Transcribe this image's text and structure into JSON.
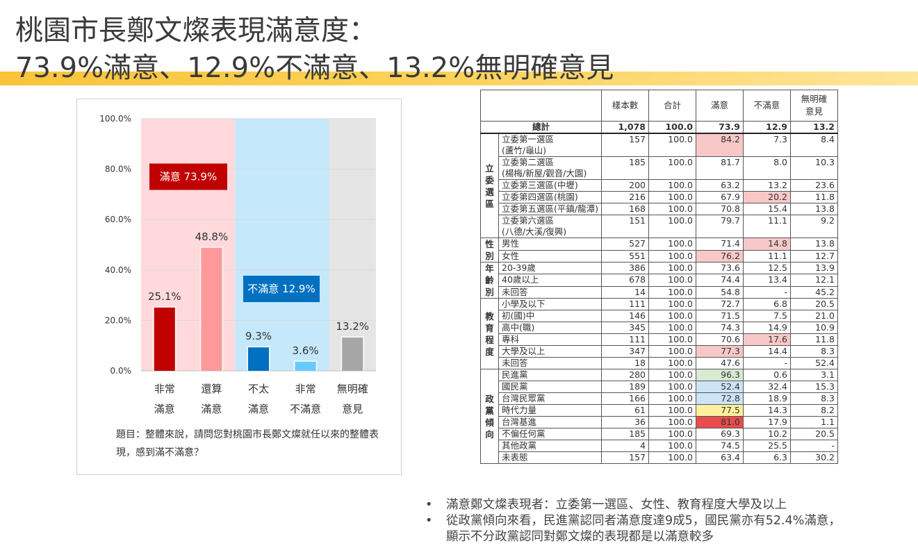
{
  "title": {
    "line1": "桃園市長鄭文燦表現滿意度：",
    "line2": "73.9%滿意、12.9%不滿意、13.2%無明確意見"
  },
  "chart_data": {
    "type": "bar",
    "categories": [
      [
        "非常",
        "滿意"
      ],
      [
        "還算",
        "滿意"
      ],
      [
        "不太",
        "滿意"
      ],
      [
        "非常",
        "不滿意"
      ],
      [
        "無明確",
        "意見"
      ]
    ],
    "values": [
      25.1,
      48.8,
      9.3,
      3.6,
      13.2
    ],
    "value_labels": [
      "25.1%",
      "48.8%",
      "9.3%",
      "3.6%",
      "13.2%"
    ],
    "bar_colors": [
      "#c00000",
      "#ff9999",
      "#0070c0",
      "#66ccff",
      "#a6a6a6"
    ],
    "ylim": [
      0,
      100
    ],
    "yticks": [
      "0.0%",
      "20.0%",
      "40.0%",
      "60.0%",
      "80.0%",
      "100.0%"
    ],
    "grid": true,
    "groups": [
      {
        "label": "滿意 73.9%",
        "bg": "#ffd9dc",
        "box": "#c00000"
      },
      {
        "label": "不滿意 12.9%",
        "bg": "#c5e8fb",
        "box": "#0070c0"
      },
      {
        "label": "",
        "bg": "#e5e5e5",
        "box": ""
      }
    ]
  },
  "question": "題目：整體來說，請問您對桃園市長鄭文燦就任以來的整體表現，感到滿不滿意？",
  "table": {
    "headers": [
      "樣本數",
      "合計",
      "滿意",
      "不滿意",
      "無明確意見"
    ],
    "total": {
      "label": "總計",
      "values": [
        "1,078",
        "100.0",
        "73.9",
        "12.9",
        "13.2"
      ]
    },
    "highlight_colors": {
      "pink": "#f8c8c8",
      "green": "#d8ead2",
      "blue": "#cce4f5",
      "yellow": "#fff0a0",
      "red": "#e84c4c"
    },
    "groups": [
      {
        "name": "立委選區",
        "rows": [
          {
            "label": "立委第一選區",
            "label2": "(蘆竹/龜山)",
            "values": [
              "157",
              "100.0",
              "84.2",
              "7.3",
              "8.4"
            ],
            "hl": {
              "2": "pink"
            }
          },
          {
            "label": "立委第二選區",
            "label2": "(楊梅/新屋/觀音/大園)",
            "values": [
              "185",
              "100.0",
              "81.7",
              "8.0",
              "10.3"
            ]
          },
          {
            "label": "立委第三選區(中壢)",
            "values": [
              "200",
              "100.0",
              "63.2",
              "13.2",
              "23.6"
            ]
          },
          {
            "label": "立委第四選區(桃園)",
            "values": [
              "216",
              "100.0",
              "67.9",
              "20.2",
              "11.8"
            ],
            "hl": {
              "3": "pink"
            }
          },
          {
            "label": "立委第五選區(平鎮/龍潭)",
            "values": [
              "168",
              "100.0",
              "70.8",
              "15.4",
              "13.8"
            ]
          },
          {
            "label": "立委第六選區",
            "label2": "(八德/大溪/復興)",
            "values": [
              "151",
              "100.0",
              "79.7",
              "11.1",
              "9.2"
            ]
          }
        ]
      },
      {
        "name": "性別",
        "rows": [
          {
            "label": "男性",
            "values": [
              "527",
              "100.0",
              "71.4",
              "14.8",
              "13.8"
            ],
            "hl": {
              "3": "pink"
            }
          },
          {
            "label": "女性",
            "values": [
              "551",
              "100.0",
              "76.2",
              "11.1",
              "12.7"
            ],
            "hl": {
              "2": "pink"
            }
          }
        ]
      },
      {
        "name": "年齡別",
        "rows": [
          {
            "label": "20-39歲",
            "values": [
              "386",
              "100.0",
              "73.6",
              "12.5",
              "13.9"
            ]
          },
          {
            "label": "40歲以上",
            "values": [
              "678",
              "100.0",
              "74.4",
              "13.4",
              "12.1"
            ]
          },
          {
            "label": "未回答",
            "values": [
              "14",
              "100.0",
              "54.8",
              "-",
              "45.2"
            ]
          }
        ]
      },
      {
        "name": "教育程度",
        "rows": [
          {
            "label": "小學及以下",
            "values": [
              "111",
              "100.0",
              "72.7",
              "6.8",
              "20.5"
            ]
          },
          {
            "label": "初(國)中",
            "values": [
              "146",
              "100.0",
              "71.5",
              "7.5",
              "21.0"
            ]
          },
          {
            "label": "高中(職)",
            "values": [
              "345",
              "100.0",
              "74.3",
              "14.9",
              "10.9"
            ]
          },
          {
            "label": "專科",
            "values": [
              "111",
              "100.0",
              "70.6",
              "17.6",
              "11.8"
            ],
            "hl": {
              "3": "pink"
            }
          },
          {
            "label": "大學及以上",
            "values": [
              "347",
              "100.0",
              "77.3",
              "14.4",
              "8.3"
            ],
            "hl": {
              "2": "pink"
            }
          },
          {
            "label": "未回答",
            "values": [
              "18",
              "100.0",
              "47.6",
              "-",
              "52.4"
            ]
          }
        ]
      },
      {
        "name": "政黨傾向",
        "rows": [
          {
            "label": "民進黨",
            "values": [
              "280",
              "100.0",
              "96.3",
              "0.6",
              "3.1"
            ],
            "hl": {
              "2": "green"
            }
          },
          {
            "label": "國民黨",
            "values": [
              "189",
              "100.0",
              "52.4",
              "32.4",
              "15.3"
            ],
            "hl": {
              "2": "blue"
            }
          },
          {
            "label": "台灣民眾黨",
            "values": [
              "166",
              "100.0",
              "72.8",
              "18.9",
              "8.3"
            ],
            "hl": {
              "2": "blue"
            }
          },
          {
            "label": "時代力量",
            "values": [
              "61",
              "100.0",
              "77.5",
              "14.3",
              "8.2"
            ],
            "hl": {
              "2": "yellow"
            }
          },
          {
            "label": "台灣基進",
            "values": [
              "36",
              "100.0",
              "81.0",
              "17.9",
              "1.1"
            ],
            "hl": {
              "2": "red"
            }
          },
          {
            "label": "不偏任何黨",
            "values": [
              "185",
              "100.0",
              "69.3",
              "10.2",
              "20.5"
            ]
          },
          {
            "label": "其他政黨",
            "values": [
              "4",
              "100.0",
              "74.5",
              "25.5",
              "-"
            ]
          },
          {
            "label": "未表態",
            "values": [
              "157",
              "100.0",
              "63.4",
              "6.3",
              "30.2"
            ]
          }
        ]
      }
    ]
  },
  "notes": [
    "滿意鄭文燦表現者：立委第一選區、女性、教育程度大學及以上",
    "從政黨傾向來看，民進黨認同者滿意度達9成5，國民黨亦有52.4%滿意，",
    "顯示不分政黨認同對鄭文燦的表現都是以滿意較多"
  ],
  "bullet": "•"
}
